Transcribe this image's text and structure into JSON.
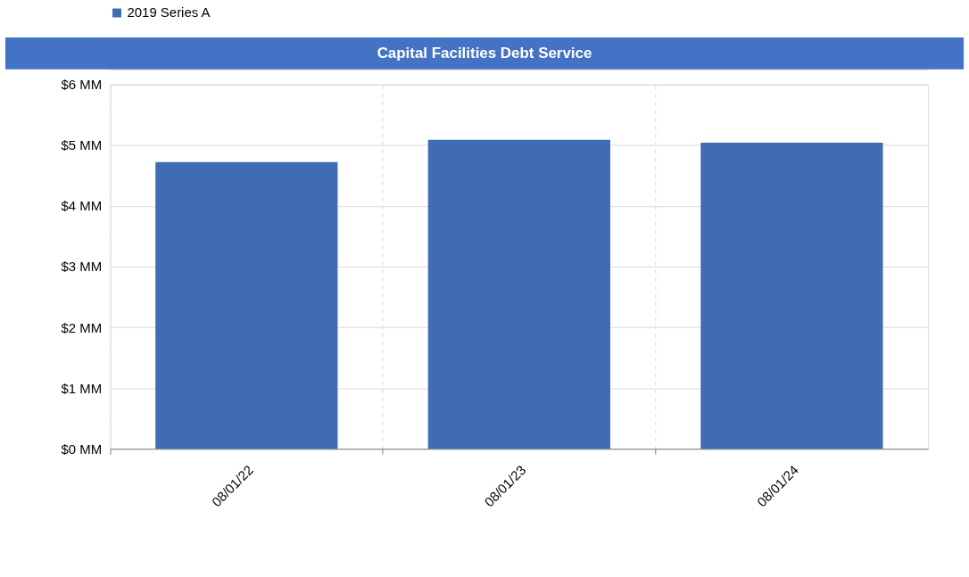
{
  "chart_data": {
    "type": "bar",
    "title": "Capital Facilities Debt Service",
    "categories": [
      "08/01/22",
      "08/01/23",
      "08/01/24"
    ],
    "series": [
      {
        "name": "2019 Series A",
        "color": "#3f6cb3",
        "values": [
          4.72,
          5.09,
          5.04
        ]
      }
    ],
    "ylim": [
      0,
      6
    ],
    "yticks": [
      {
        "value": 0,
        "label": "$0 MM"
      },
      {
        "value": 1,
        "label": "$1 MM"
      },
      {
        "value": 2,
        "label": "$2 MM"
      },
      {
        "value": 3,
        "label": "$3 MM"
      },
      {
        "value": 4,
        "label": "$4 MM"
      },
      {
        "value": 5,
        "label": "$5 MM"
      },
      {
        "value": 6,
        "label": "$6 MM"
      }
    ],
    "grid": true,
    "legend": "top"
  }
}
